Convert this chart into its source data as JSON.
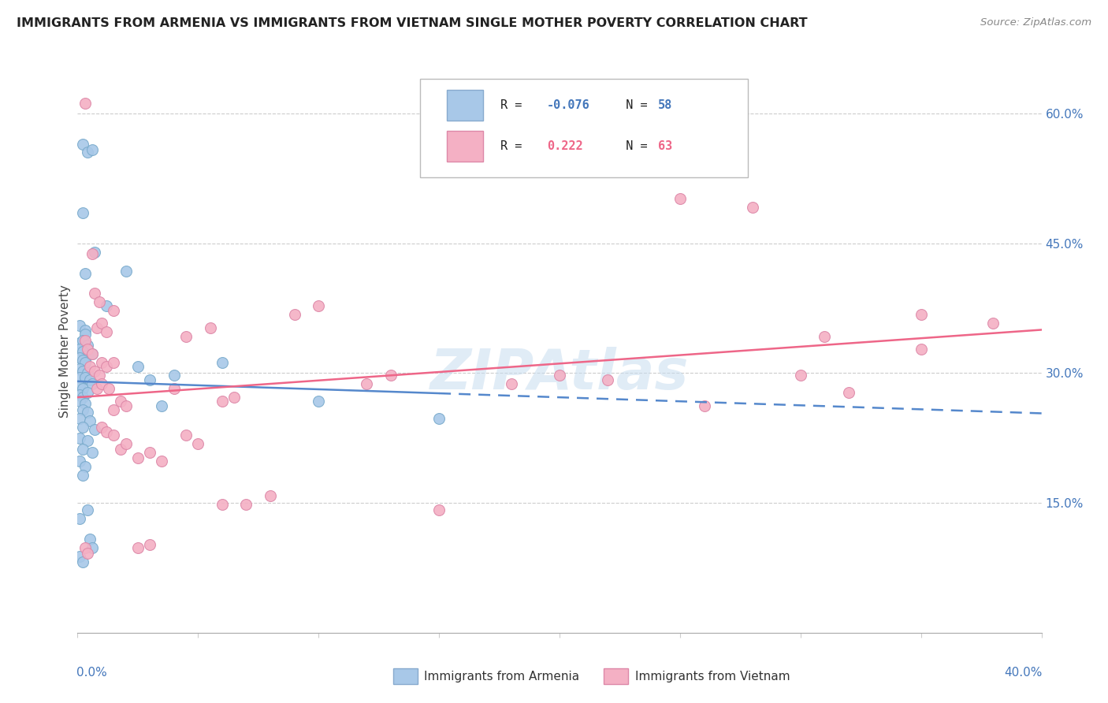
{
  "title": "IMMIGRANTS FROM ARMENIA VS IMMIGRANTS FROM VIETNAM SINGLE MOTHER POVERTY CORRELATION CHART",
  "source": "Source: ZipAtlas.com",
  "ylabel": "Single Mother Poverty",
  "color_armenia": "#a8c8e8",
  "color_vietnam": "#f4b0c4",
  "line_armenia": "#5588cc",
  "line_vietnam": "#ee6688",
  "watermark_color": "#c8ddf0",
  "watermark_text": "ZIPAtlas",
  "xlim": [
    0.0,
    0.4
  ],
  "ylim": [
    0.0,
    0.65
  ],
  "armenia_points": [
    [
      0.002,
      0.565
    ],
    [
      0.004,
      0.555
    ],
    [
      0.006,
      0.558
    ],
    [
      0.002,
      0.485
    ],
    [
      0.003,
      0.415
    ],
    [
      0.007,
      0.44
    ],
    [
      0.001,
      0.355
    ],
    [
      0.003,
      0.35
    ],
    [
      0.003,
      0.345
    ],
    [
      0.001,
      0.335
    ],
    [
      0.002,
      0.338
    ],
    [
      0.004,
      0.332
    ],
    [
      0.001,
      0.328
    ],
    [
      0.002,
      0.325
    ],
    [
      0.004,
      0.32
    ],
    [
      0.006,
      0.322
    ],
    [
      0.001,
      0.318
    ],
    [
      0.002,
      0.315
    ],
    [
      0.003,
      0.312
    ],
    [
      0.001,
      0.305
    ],
    [
      0.002,
      0.302
    ],
    [
      0.004,
      0.3
    ],
    [
      0.001,
      0.295
    ],
    [
      0.003,
      0.295
    ],
    [
      0.005,
      0.292
    ],
    [
      0.001,
      0.285
    ],
    [
      0.002,
      0.282
    ],
    [
      0.006,
      0.288
    ],
    [
      0.001,
      0.275
    ],
    [
      0.002,
      0.272
    ],
    [
      0.004,
      0.278
    ],
    [
      0.001,
      0.268
    ],
    [
      0.003,
      0.265
    ],
    [
      0.002,
      0.258
    ],
    [
      0.004,
      0.255
    ],
    [
      0.001,
      0.248
    ],
    [
      0.005,
      0.245
    ],
    [
      0.002,
      0.238
    ],
    [
      0.007,
      0.235
    ],
    [
      0.001,
      0.225
    ],
    [
      0.004,
      0.222
    ],
    [
      0.002,
      0.212
    ],
    [
      0.006,
      0.208
    ],
    [
      0.001,
      0.198
    ],
    [
      0.003,
      0.192
    ],
    [
      0.002,
      0.182
    ],
    [
      0.001,
      0.132
    ],
    [
      0.004,
      0.142
    ],
    [
      0.005,
      0.108
    ],
    [
      0.006,
      0.098
    ],
    [
      0.001,
      0.088
    ],
    [
      0.002,
      0.082
    ],
    [
      0.012,
      0.378
    ],
    [
      0.02,
      0.418
    ],
    [
      0.025,
      0.308
    ],
    [
      0.03,
      0.292
    ],
    [
      0.035,
      0.262
    ],
    [
      0.04,
      0.298
    ],
    [
      0.06,
      0.312
    ],
    [
      0.1,
      0.268
    ],
    [
      0.15,
      0.248
    ]
  ],
  "vietnam_points": [
    [
      0.003,
      0.612
    ],
    [
      0.006,
      0.438
    ],
    [
      0.008,
      0.352
    ],
    [
      0.01,
      0.358
    ],
    [
      0.012,
      0.348
    ],
    [
      0.007,
      0.392
    ],
    [
      0.009,
      0.382
    ],
    [
      0.015,
      0.372
    ],
    [
      0.003,
      0.338
    ],
    [
      0.004,
      0.328
    ],
    [
      0.006,
      0.322
    ],
    [
      0.005,
      0.308
    ],
    [
      0.007,
      0.302
    ],
    [
      0.009,
      0.298
    ],
    [
      0.01,
      0.312
    ],
    [
      0.012,
      0.308
    ],
    [
      0.015,
      0.312
    ],
    [
      0.008,
      0.282
    ],
    [
      0.01,
      0.288
    ],
    [
      0.013,
      0.282
    ],
    [
      0.015,
      0.258
    ],
    [
      0.018,
      0.268
    ],
    [
      0.02,
      0.262
    ],
    [
      0.01,
      0.238
    ],
    [
      0.012,
      0.232
    ],
    [
      0.015,
      0.228
    ],
    [
      0.018,
      0.212
    ],
    [
      0.02,
      0.218
    ],
    [
      0.025,
      0.202
    ],
    [
      0.03,
      0.208
    ],
    [
      0.035,
      0.198
    ],
    [
      0.003,
      0.098
    ],
    [
      0.004,
      0.092
    ],
    [
      0.025,
      0.098
    ],
    [
      0.03,
      0.102
    ],
    [
      0.045,
      0.228
    ],
    [
      0.05,
      0.218
    ],
    [
      0.06,
      0.268
    ],
    [
      0.065,
      0.272
    ],
    [
      0.04,
      0.282
    ],
    [
      0.045,
      0.342
    ],
    [
      0.055,
      0.352
    ],
    [
      0.07,
      0.148
    ],
    [
      0.08,
      0.158
    ],
    [
      0.09,
      0.368
    ],
    [
      0.1,
      0.378
    ],
    [
      0.12,
      0.288
    ],
    [
      0.13,
      0.298
    ],
    [
      0.15,
      0.142
    ],
    [
      0.18,
      0.288
    ],
    [
      0.2,
      0.298
    ],
    [
      0.22,
      0.292
    ],
    [
      0.25,
      0.502
    ],
    [
      0.26,
      0.262
    ],
    [
      0.28,
      0.492
    ],
    [
      0.3,
      0.298
    ],
    [
      0.31,
      0.342
    ],
    [
      0.32,
      0.278
    ],
    [
      0.35,
      0.328
    ],
    [
      0.35,
      0.368
    ],
    [
      0.38,
      0.358
    ],
    [
      0.06,
      0.148
    ]
  ]
}
